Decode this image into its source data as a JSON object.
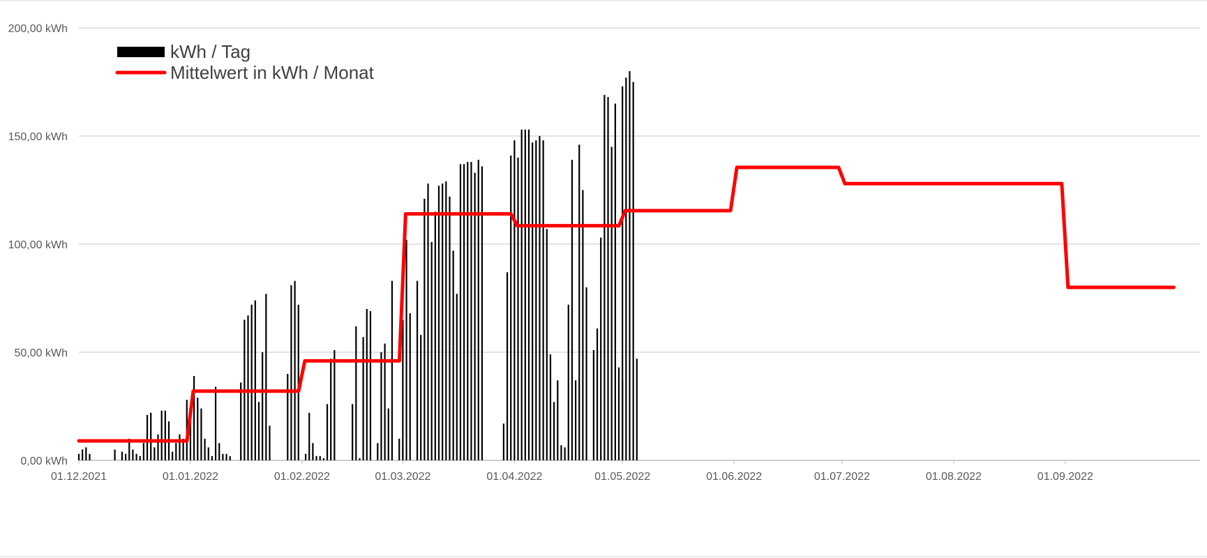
{
  "chart_data": {
    "type": "bar",
    "title": "",
    "xlabel": "",
    "ylabel": "",
    "ylim": [
      0,
      200
    ],
    "y_ticks": [
      "0,00 kWh",
      "50,00 kWh",
      "100,00 kWh",
      "150,00 kWh",
      "200,00 kWh"
    ],
    "x_ticks": [
      {
        "date": "2021-12-01",
        "label": "01.12.2021"
      },
      {
        "date": "2022-01-01",
        "label": "01.01.2022"
      },
      {
        "date": "2022-02-01",
        "label": "01.02.2022"
      },
      {
        "date": "2022-03-01",
        "label": "01.03.2022"
      },
      {
        "date": "2022-04-01",
        "label": "01.04.2022"
      },
      {
        "date": "2022-05-01",
        "label": "01.05.2022"
      },
      {
        "date": "2022-06-01",
        "label": "01.06.2022"
      },
      {
        "date": "2022-07-01",
        "label": "01.07.2022"
      },
      {
        "date": "2022-08-01",
        "label": "01.08.2022"
      },
      {
        "date": "2022-09-01",
        "label": "01.09.2022"
      }
    ],
    "grid": true,
    "legend_position": "top-left",
    "series": [
      {
        "name": "kWh / Tag",
        "kind": "bar",
        "color": "#000000",
        "points": [
          {
            "x": "2021-12-01",
            "values": [
              3,
              5,
              6,
              3,
              0,
              0,
              0,
              0,
              0,
              0,
              5,
              0,
              4,
              3,
              10,
              5,
              3,
              2,
              8,
              21,
              22,
              6,
              12,
              23,
              23,
              18,
              4,
              8,
              12,
              10,
              28
            ]
          },
          {
            "x": "2022-01-01",
            "values": [
              21,
              39,
              29,
              24,
              10,
              6,
              2,
              34,
              8,
              3,
              3,
              2,
              0,
              0,
              36,
              65,
              67,
              72,
              74,
              27,
              50,
              77,
              16,
              0,
              0,
              0,
              0,
              40,
              81,
              83,
              72
            ]
          },
          {
            "x": "2022-02-01",
            "values": [
              0,
              3,
              22,
              8,
              2,
              2,
              1,
              26,
              47,
              51,
              0,
              0,
              0,
              0,
              26,
              62,
              1,
              57,
              70,
              69,
              0,
              8,
              50,
              54,
              24,
              83,
              0,
              10,
              9
            ]
          },
          {
            "x": "2022-03-01",
            "values": [
              65,
              102,
              68,
              0,
              83,
              58,
              121,
              128,
              101,
              115,
              127,
              128,
              129,
              122,
              97,
              77,
              137,
              137,
              138,
              138,
              133,
              139,
              136,
              0,
              0,
              0,
              0,
              0,
              17,
              87,
              141
            ]
          },
          {
            "x": "2022-04-01",
            "values": [
              148,
              140,
              153,
              153,
              153,
              147,
              148,
              150,
              148,
              107,
              49,
              27,
              37,
              7,
              6,
              72,
              139,
              37,
              146,
              125,
              80,
              0,
              51,
              61,
              103,
              169,
              168,
              145,
              165,
              43,
              37
            ]
          },
          {
            "x": "2022-05-01",
            "values": [
              173,
              177,
              180,
              175,
              47,
              0,
              0,
              0,
              0,
              0,
              0,
              0,
              0,
              0,
              0,
              0,
              0,
              0,
              0,
              0,
              0,
              0,
              0,
              0,
              0,
              0,
              0,
              0,
              0,
              0,
              0
            ]
          },
          {
            "x": "2022-06-01",
            "values": [
              0,
              0,
              0,
              0,
              0,
              0,
              0,
              0,
              0,
              0,
              0,
              0,
              0,
              0,
              0,
              0,
              0,
              0,
              0,
              0,
              0,
              0,
              0,
              0,
              0,
              0,
              0,
              0,
              0,
              0
            ]
          },
          {
            "x": "2022-07-01",
            "values": [
              0,
              0,
              0,
              0,
              0,
              0,
              0,
              0,
              0,
              0,
              0,
              0,
              0,
              0,
              0,
              0,
              0,
              0,
              0,
              0,
              0,
              0,
              0,
              0,
              0,
              0,
              0,
              0,
              0,
              0,
              0
            ]
          },
          {
            "x": "2022-08-01",
            "values": [
              0,
              0,
              0,
              0,
              0,
              0,
              0,
              0,
              0,
              0,
              0,
              0,
              0,
              0,
              0,
              0,
              0,
              0,
              0,
              0,
              0,
              0,
              0,
              0,
              0,
              0,
              0,
              0,
              0,
              0,
              0
            ]
          },
          {
            "x": "2022-09-01",
            "values": [
              0,
              0,
              0,
              0,
              0,
              0,
              0,
              0,
              0,
              0,
              0,
              0,
              0,
              0,
              0,
              0,
              0,
              0,
              0,
              0,
              0,
              0,
              0,
              0,
              0,
              0,
              0,
              0,
              0,
              0
            ]
          }
        ]
      },
      {
        "name": "Mittelwert in kWh / Monat",
        "kind": "step-line",
        "color": "#ff0000",
        "points": [
          {
            "x": "2021-12-01",
            "y": 9
          },
          {
            "x": "2022-01-01",
            "y": 32
          },
          {
            "x": "2022-02-01",
            "y": 46
          },
          {
            "x": "2022-03-01",
            "y": 114
          },
          {
            "x": "2022-04-01",
            "y": 108.5
          },
          {
            "x": "2022-05-01",
            "y": 115.5
          },
          {
            "x": "2022-06-01",
            "y": 135.5
          },
          {
            "x": "2022-07-01",
            "y": 128
          },
          {
            "x": "2022-08-01",
            "y": 128
          },
          {
            "x": "2022-09-01",
            "y": 80
          },
          {
            "x": "2022-09-30",
            "y": 80
          }
        ]
      }
    ]
  },
  "legend": {
    "bar_label": "kWh / Tag",
    "line_label": "Mittelwert in kWh / Monat"
  }
}
